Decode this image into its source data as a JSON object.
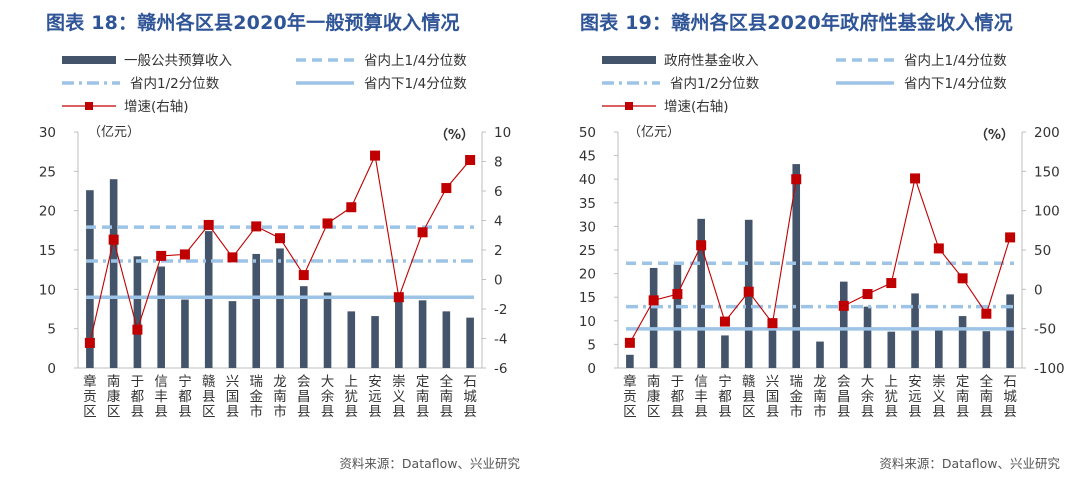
{
  "chart_data": [
    {
      "type": "bar",
      "title": "图表 18：赣州各区县2020年一般预算收入情况",
      "source": "资料来源：Dataflow、兴业研究",
      "left_unit": "（亿元）",
      "right_unit": "（%）",
      "categories": [
        "章贡区",
        "南康区",
        "于都县",
        "信丰县",
        "宁都县",
        "赣县区",
        "兴国县",
        "瑞金市",
        "龙南市",
        "会昌县",
        "大余县",
        "上犹县",
        "安远县",
        "崇义县",
        "定南县",
        "全南县",
        "石城县"
      ],
      "ylim": [
        0,
        30
      ],
      "y_ticks": [
        0,
        5,
        10,
        15,
        20,
        25,
        30
      ],
      "y2lim": [
        -6,
        10
      ],
      "y2_ticks": [
        -6,
        -4,
        -2,
        0,
        2,
        4,
        6,
        8,
        10
      ],
      "series": [
        {
          "name": "一般公共预算收入",
          "axis": "left",
          "kind": "bar",
          "color": "#44546a",
          "values": [
            22.6,
            24.0,
            14.2,
            12.9,
            8.7,
            17.4,
            8.5,
            14.5,
            15.2,
            10.4,
            9.6,
            7.2,
            6.6,
            9.3,
            8.6,
            7.2,
            6.4
          ]
        },
        {
          "name": "增速(右轴)",
          "axis": "right",
          "kind": "line",
          "color": "#c00000",
          "values": [
            -4.3,
            2.7,
            -3.4,
            1.6,
            1.7,
            3.7,
            1.5,
            3.6,
            2.8,
            0.3,
            3.8,
            4.9,
            8.4,
            -1.2,
            3.2,
            6.2,
            8.1
          ]
        }
      ],
      "reference_lines": [
        {
          "name": "省内上1/4分位数",
          "value": 17.9,
          "style": "dashed",
          "color": "#9dc3e6"
        },
        {
          "name": "省内1/2分位数",
          "value": 13.6,
          "style": "dashdot",
          "color": "#9dc3e6"
        },
        {
          "name": "省内下1/4分位数",
          "value": 9.0,
          "style": "solid",
          "color": "#9dc3e6"
        }
      ],
      "legend": [
        "一般公共预算收入",
        "省内上1/4分位数",
        "省内1/2分位数",
        "省内下1/4分位数",
        "增速(右轴)"
      ]
    },
    {
      "type": "bar",
      "title": "图表 19：赣州各区县2020年政府性基金收入情况",
      "source": "资料来源：Dataflow、兴业研究",
      "left_unit": "（亿元）",
      "right_unit": "（%）",
      "categories": [
        "章贡区",
        "南康区",
        "于都县",
        "信丰县",
        "宁都县",
        "赣县区",
        "兴国县",
        "瑞金市",
        "龙南市",
        "会昌县",
        "大余县",
        "上犹县",
        "安远县",
        "崇义县",
        "定南县",
        "全南县",
        "石城县"
      ],
      "ylim": [
        0,
        50
      ],
      "y_ticks": [
        0,
        5,
        10,
        15,
        20,
        25,
        30,
        35,
        40,
        45,
        50
      ],
      "y2lim": [
        -100,
        200
      ],
      "y2_ticks": [
        -100,
        -50,
        0,
        50,
        100,
        150,
        200
      ],
      "series": [
        {
          "name": "政府性基金收入",
          "axis": "left",
          "kind": "bar",
          "color": "#44546a",
          "values": [
            2.8,
            21.2,
            22.0,
            31.6,
            6.9,
            31.4,
            8.6,
            43.2,
            5.6,
            18.3,
            13.0,
            7.7,
            15.8,
            8.5,
            11.0,
            7.8,
            15.6
          ]
        },
        {
          "name": "增速(右轴)",
          "axis": "right",
          "kind": "line",
          "color": "#c00000",
          "values": [
            -68,
            -14,
            -6,
            56,
            -41,
            -3,
            -43,
            140,
            null,
            -21,
            -6,
            8,
            141,
            52,
            14,
            -31,
            66
          ]
        }
      ],
      "reference_lines": [
        {
          "name": "省内上1/4分位数",
          "value": 22.2,
          "style": "dashed",
          "color": "#9dc3e6"
        },
        {
          "name": "省内1/2分位数",
          "value": 13.0,
          "style": "dashdot",
          "color": "#9dc3e6"
        },
        {
          "name": "省内下1/4分位数",
          "value": 8.3,
          "style": "solid",
          "color": "#9dc3e6"
        }
      ],
      "legend": [
        "政府性基金收入",
        "省内上1/4分位数",
        "省内1/2分位数",
        "省内下1/4分位数",
        "增速(右轴)"
      ]
    }
  ]
}
